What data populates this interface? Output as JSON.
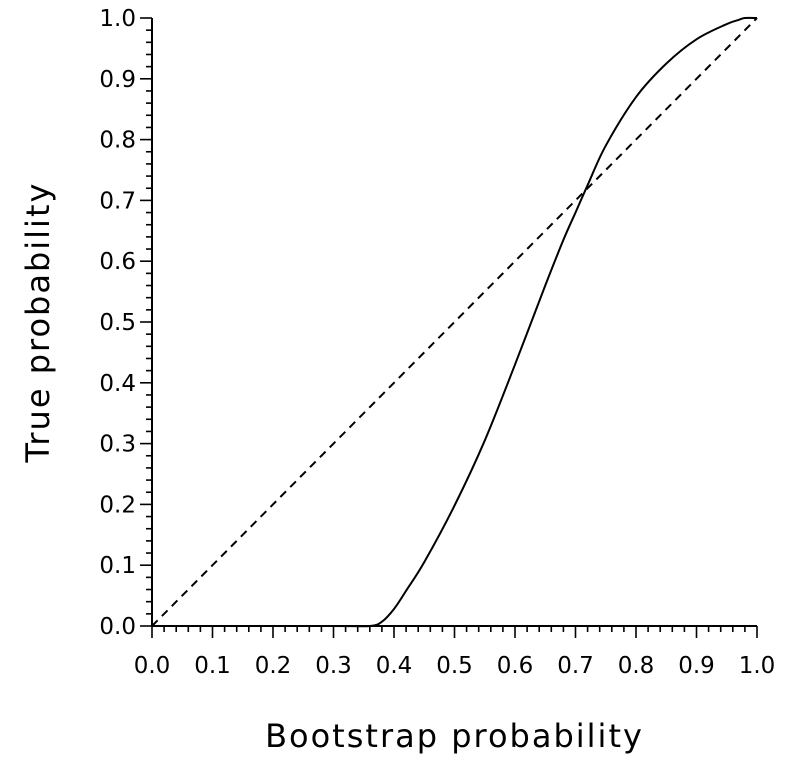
{
  "chart_data": {
    "type": "line",
    "title": "",
    "xlabel": "Bootstrap probability",
    "ylabel": "True probability",
    "xlim": [
      0.0,
      1.0
    ],
    "ylim": [
      0.0,
      1.0
    ],
    "grid": false,
    "x_ticks": [
      "0.0",
      "0.1",
      "0.2",
      "0.3",
      "0.4",
      "0.5",
      "0.6",
      "0.7",
      "0.8",
      "0.9",
      "1.0"
    ],
    "y_ticks": [
      "0.0",
      "0.1",
      "0.2",
      "0.3",
      "0.4",
      "0.5",
      "0.6",
      "0.7",
      "0.8",
      "0.9",
      "1.0"
    ],
    "series": [
      {
        "style": "solid",
        "color": "#000000",
        "x": [
          0.0,
          0.3,
          0.36,
          0.38,
          0.4,
          0.42,
          0.45,
          0.5,
          0.55,
          0.6,
          0.65,
          0.68,
          0.7,
          0.72,
          0.75,
          0.8,
          0.85,
          0.9,
          0.95,
          0.97,
          0.98,
          1.0
        ],
        "y": [
          0.0,
          0.0,
          0.0,
          0.007,
          0.028,
          0.058,
          0.105,
          0.198,
          0.305,
          0.43,
          0.56,
          0.635,
          0.68,
          0.725,
          0.79,
          0.87,
          0.925,
          0.965,
          0.99,
          0.997,
          1.0,
          1.0
        ]
      },
      {
        "style": "dashed",
        "color": "#000000",
        "x": [
          0.0,
          1.0
        ],
        "y": [
          0.0,
          1.0
        ]
      }
    ]
  }
}
